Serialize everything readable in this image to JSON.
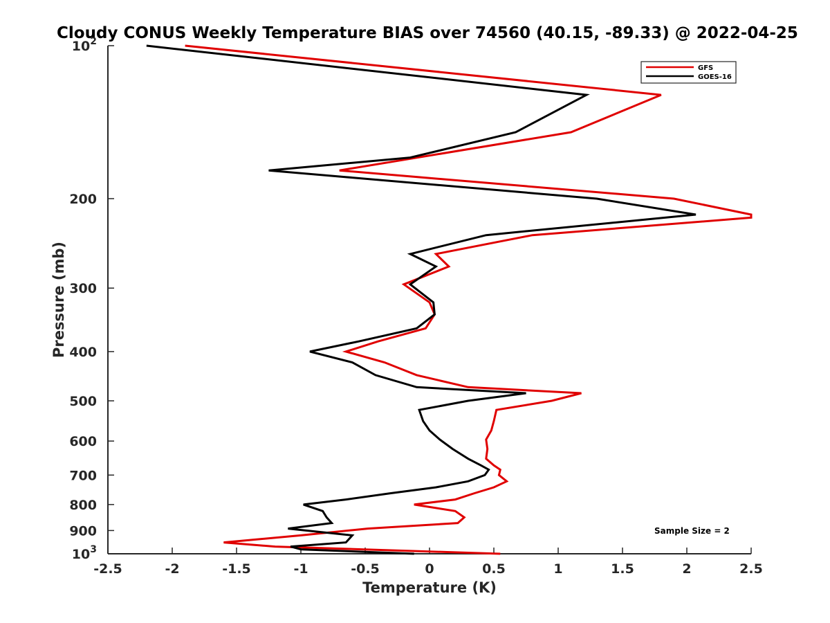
{
  "chart_data": {
    "type": "line",
    "title": "Cloudy CONUS Weekly Temperature BIAS over 74560 (40.15, -89.33) @ 2022-04-25",
    "xlabel": "Temperature (K)",
    "ylabel": "Pressure (mb)",
    "xlim": [
      -2.5,
      2.5
    ],
    "ylim": [
      100,
      1000
    ],
    "yscale": "log",
    "y_reversed": true,
    "grid": false,
    "legend_position": "top-right",
    "x_ticks": [
      -2.5,
      -2,
      -1.5,
      -1,
      -0.5,
      0,
      0.5,
      1,
      1.5,
      2,
      2.5
    ],
    "x_tick_labels": [
      "-2.5",
      "-2",
      "-1.5",
      "-1",
      "-0.5",
      "0",
      "0.5",
      "1",
      "1.5",
      "2",
      "2.5"
    ],
    "y_ticks": [
      100,
      200,
      300,
      400,
      500,
      600,
      700,
      800,
      900,
      1000
    ],
    "y_tick_labels": [
      {
        "base": "10",
        "exp": "2"
      },
      {
        "base": "200",
        "exp": ""
      },
      {
        "base": "300",
        "exp": ""
      },
      {
        "base": "400",
        "exp": ""
      },
      {
        "base": "500",
        "exp": ""
      },
      {
        "base": "600",
        "exp": ""
      },
      {
        "base": "700",
        "exp": ""
      },
      {
        "base": "800",
        "exp": ""
      },
      {
        "base": "900",
        "exp": ""
      },
      {
        "base": "10",
        "exp": "3"
      }
    ],
    "annotation": "Sample Size = 2",
    "series": [
      {
        "name": "GFS",
        "color": "#e00000",
        "points": [
          [
            -1.9,
            100
          ],
          [
            1.8,
            125
          ],
          [
            1.1,
            148
          ],
          [
            -0.7,
            176
          ],
          [
            1.9,
            200
          ],
          [
            2.5,
            215
          ],
          [
            2.5,
            218
          ],
          [
            0.8,
            236
          ],
          [
            0.05,
            257
          ],
          [
            0.15,
            272
          ],
          [
            -0.2,
            295
          ],
          [
            0.0,
            320
          ],
          [
            0.04,
            338
          ],
          [
            -0.03,
            360
          ],
          [
            -0.4,
            382
          ],
          [
            -0.65,
            400
          ],
          [
            -0.35,
            420
          ],
          [
            -0.1,
            445
          ],
          [
            0.3,
            470
          ],
          [
            1.18,
            483
          ],
          [
            0.95,
            500
          ],
          [
            0.52,
            521
          ],
          [
            0.5,
            548
          ],
          [
            0.48,
            572
          ],
          [
            0.44,
            596
          ],
          [
            0.45,
            622
          ],
          [
            0.44,
            650
          ],
          [
            0.5,
            670
          ],
          [
            0.55,
            683
          ],
          [
            0.54,
            700
          ],
          [
            0.6,
            720
          ],
          [
            0.5,
            740
          ],
          [
            0.35,
            760
          ],
          [
            0.2,
            782
          ],
          [
            -0.12,
            800
          ],
          [
            0.2,
            824
          ],
          [
            0.27,
            848
          ],
          [
            0.22,
            870
          ],
          [
            -0.48,
            892
          ],
          [
            -1.0,
            920
          ],
          [
            -1.6,
            950
          ],
          [
            -1.2,
            968
          ],
          [
            0.55,
            1000
          ]
        ]
      },
      {
        "name": "GOES-16",
        "color": "#000000",
        "points": [
          [
            -2.2,
            100
          ],
          [
            1.22,
            125
          ],
          [
            0.67,
            148
          ],
          [
            -0.15,
            166
          ],
          [
            -1.25,
            176
          ],
          [
            1.3,
            200
          ],
          [
            2.07,
            215
          ],
          [
            0.44,
            236
          ],
          [
            -0.15,
            257
          ],
          [
            0.05,
            272
          ],
          [
            -0.15,
            295
          ],
          [
            0.03,
            320
          ],
          [
            0.04,
            338
          ],
          [
            -0.1,
            360
          ],
          [
            -0.55,
            382
          ],
          [
            -0.93,
            400
          ],
          [
            -0.6,
            420
          ],
          [
            -0.42,
            445
          ],
          [
            -0.1,
            470
          ],
          [
            0.75,
            483
          ],
          [
            0.3,
            500
          ],
          [
            -0.08,
            521
          ],
          [
            -0.05,
            548
          ],
          [
            0.0,
            572
          ],
          [
            0.08,
            596
          ],
          [
            0.18,
            622
          ],
          [
            0.3,
            650
          ],
          [
            0.4,
            670
          ],
          [
            0.46,
            683
          ],
          [
            0.43,
            700
          ],
          [
            0.3,
            720
          ],
          [
            0.05,
            740
          ],
          [
            -0.3,
            760
          ],
          [
            -0.65,
            782
          ],
          [
            -0.98,
            800
          ],
          [
            -0.83,
            824
          ],
          [
            -0.8,
            848
          ],
          [
            -0.76,
            870
          ],
          [
            -1.1,
            892
          ],
          [
            -0.6,
            920
          ],
          [
            -0.65,
            950
          ],
          [
            -1.08,
            968
          ],
          [
            -1.0,
            980
          ],
          [
            -0.12,
            1000
          ]
        ]
      }
    ]
  }
}
